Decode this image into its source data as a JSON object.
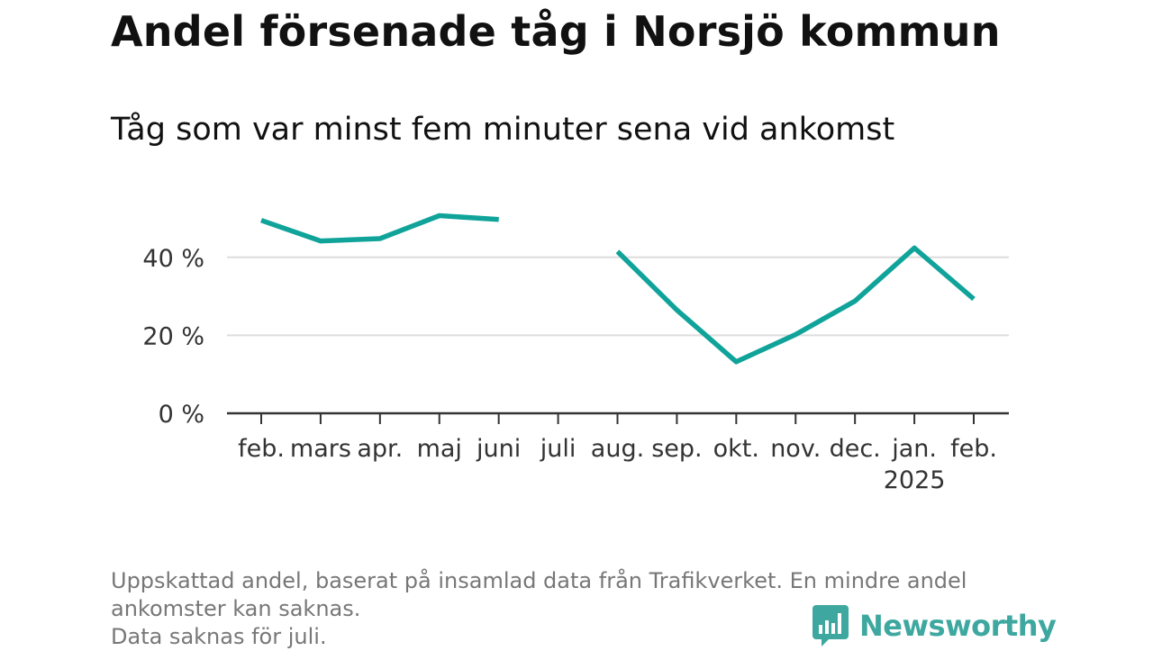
{
  "title": "Andel försenade tåg i Norsjö kommun",
  "subtitle": "Tåg som var minst fem minuter sena vid ankomst",
  "chart_data": {
    "type": "line",
    "categories": [
      "feb.",
      "mars",
      "apr.",
      "maj",
      "juni",
      "juli",
      "aug.",
      "sep.",
      "okt.",
      "nov.",
      "dec.",
      "jan.",
      "feb."
    ],
    "year_label": {
      "index": 11,
      "text": "2025"
    },
    "series": [
      {
        "name": "Andel försenade tåg",
        "color": "#0fa39a",
        "values": [
          49.5,
          44.2,
          44.8,
          50.7,
          49.7,
          null,
          41.5,
          26.5,
          13.2,
          20.2,
          28.8,
          42.4,
          29.3
        ]
      }
    ],
    "yticks": [
      0,
      20,
      40
    ],
    "ytick_labels": [
      "0 %",
      "20 %",
      "40 %"
    ],
    "ylim": [
      0,
      55
    ],
    "grid": true,
    "xlabel": "",
    "ylabel": ""
  },
  "footnote": {
    "line1": "Uppskattad andel, baserat på insamlad data från Trafikverket. En mindre andel",
    "line2": "ankomster kan saknas.",
    "line3": "Data saknas för juli."
  },
  "brand": {
    "name": "Newsworthy",
    "icon": "newsworthy-chart-bubble-icon",
    "color": "#3ea8a0"
  }
}
